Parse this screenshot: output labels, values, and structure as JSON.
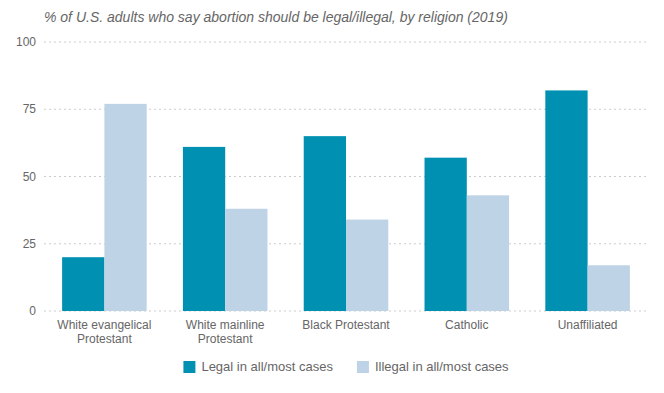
{
  "chart_data": {
    "type": "bar",
    "title": "% of U.S. adults who say abortion should be legal/illegal, by religion (2019)",
    "categories": [
      "White evangelical\nProtestant",
      "White mainline\nProtestant",
      "Black Protestant",
      "Catholic",
      "Unaffiliated"
    ],
    "series": [
      {
        "name": "Legal in all/most cases",
        "color": "#0090b2",
        "values": [
          20,
          61,
          65,
          57,
          82
        ]
      },
      {
        "name": "Illegal in all/most cases",
        "color": "#bed3e5",
        "values": [
          77,
          38,
          34,
          43,
          17
        ]
      }
    ],
    "ylim": [
      0,
      100
    ],
    "yticks": [
      0,
      25,
      50,
      75,
      100
    ],
    "grid": true,
    "legend": "bottom"
  }
}
